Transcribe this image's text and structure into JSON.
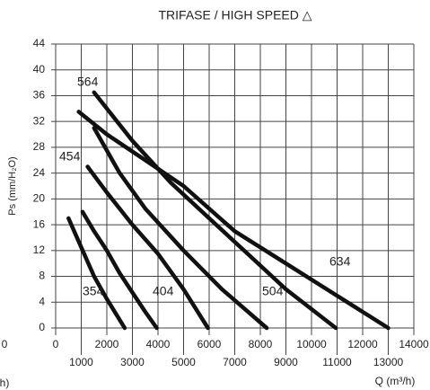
{
  "chart_data": {
    "type": "line",
    "title": "TRIFASE / HIGH SPEED  △",
    "y_label": "Ps (mm/H₂O)",
    "x_label": "Q (m³/h)",
    "edge_texts": [
      "0",
      "h)"
    ],
    "xlim": [
      0,
      14000
    ],
    "ylim": [
      0,
      44
    ],
    "xticks": [
      0,
      1000,
      2000,
      3000,
      4000,
      5000,
      6000,
      7000,
      8000,
      9000,
      10000,
      11000,
      12000,
      13000,
      14000
    ],
    "yticks": [
      0,
      4,
      8,
      12,
      16,
      20,
      24,
      28,
      32,
      36,
      40,
      44
    ],
    "grid": true,
    "series": [
      {
        "name": "354",
        "color": "#111111",
        "x": [
          500,
          1000,
          1500,
          2000,
          2700
        ],
        "values": [
          17,
          12.5,
          8,
          4.5,
          0
        ]
      },
      {
        "name": "404",
        "color": "#111111",
        "x": [
          1050,
          1500,
          2000,
          2500,
          3000,
          3500,
          3950
        ],
        "values": [
          18,
          15,
          12,
          8.5,
          5.5,
          2.5,
          0
        ]
      },
      {
        "name": "454",
        "color": "#111111",
        "x": [
          1250,
          2000,
          3000,
          4000,
          5000,
          5950
        ],
        "values": [
          25,
          21,
          16,
          11.5,
          6,
          0
        ]
      },
      {
        "name": "504",
        "color": "#111111",
        "x": [
          1500,
          2500,
          3500,
          5000,
          6500,
          8250
        ],
        "values": [
          31,
          24,
          18.5,
          12,
          6,
          0
        ]
      },
      {
        "name": "564",
        "color": "#111111",
        "x": [
          1500,
          3000,
          4500,
          6000,
          7500,
          9000,
          10950
        ],
        "values": [
          36.5,
          29,
          22.5,
          17,
          11.5,
          6,
          0
        ]
      },
      {
        "name": "634",
        "color": "#111111",
        "x": [
          900,
          2000,
          3500,
          5000,
          7000,
          9000,
          11000,
          13000
        ],
        "values": [
          33.5,
          30,
          26,
          22,
          15,
          10,
          5,
          0
        ]
      }
    ]
  }
}
